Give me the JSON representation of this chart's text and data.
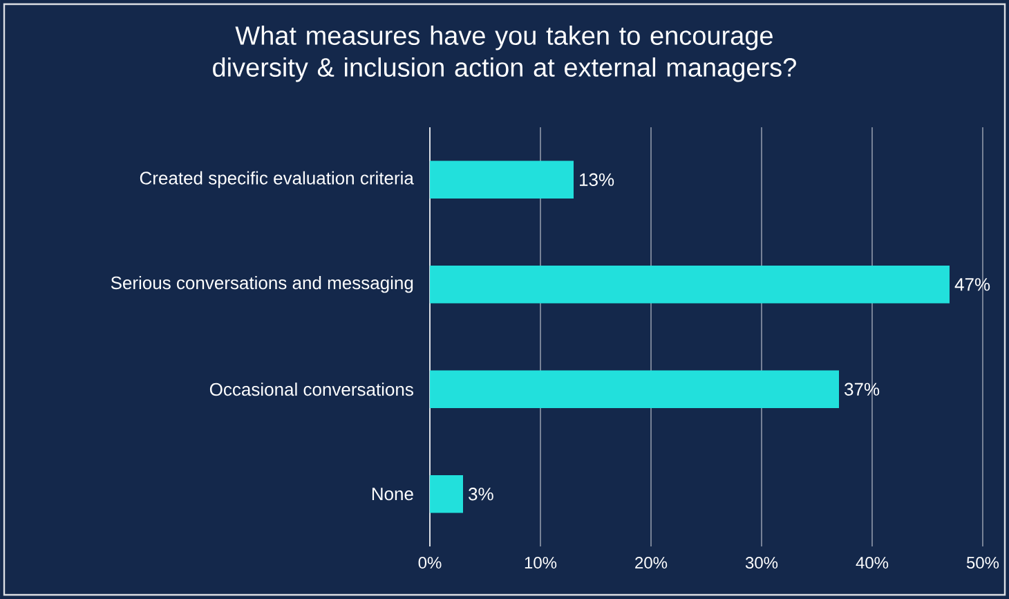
{
  "chart_data": {
    "type": "bar",
    "orientation": "horizontal",
    "title": "What measures have you taken to encourage diversity & inclusion action at external managers?",
    "categories": [
      "Created specific evaluation criteria",
      "Serious conversations and messaging",
      "Occasional conversations",
      "None"
    ],
    "values": [
      13,
      47,
      37,
      3
    ],
    "value_labels": [
      "13%",
      "47%",
      "37%",
      "3%"
    ],
    "color": "#22e0dc",
    "xlim": [
      0,
      50
    ],
    "xticks": [
      {
        "value": 0,
        "label": "0%"
      },
      {
        "value": 10,
        "label": "10%"
      },
      {
        "value": 20,
        "label": "20%"
      },
      {
        "value": 30,
        "label": "30%"
      },
      {
        "value": 40,
        "label": "40%"
      },
      {
        "value": 50,
        "label": "50%"
      }
    ],
    "grid": "x"
  }
}
